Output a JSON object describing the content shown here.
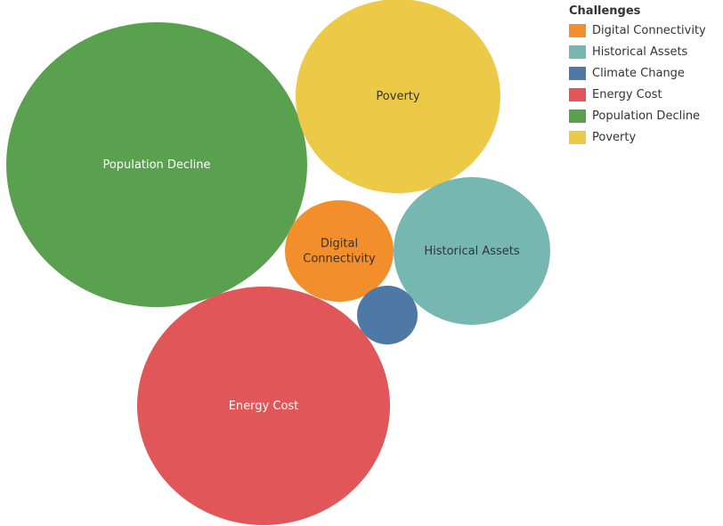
{
  "chart_data": {
    "type": "bubble",
    "legend_title": "Challenges",
    "legend_position": "top-right",
    "legend": [
      {
        "name": "Digital Connectivity",
        "color": "#f28e2b"
      },
      {
        "name": "Historical Assets",
        "color": "#76b7b2"
      },
      {
        "name": "Climate Change",
        "color": "#4e79a7"
      },
      {
        "name": "Energy Cost",
        "color": "#e15759"
      },
      {
        "name": "Population Decline",
        "color": "#59a14f"
      },
      {
        "name": "Poverty",
        "color": "#edc948"
      }
    ],
    "bubbles": [
      {
        "name": "Population Decline",
        "label": "Population Decline",
        "color": "#59a14f",
        "label_color": "#ffffff"
      },
      {
        "name": "Poverty",
        "label": "Poverty",
        "color": "#edc948",
        "label_color": "#333333"
      },
      {
        "name": "Historical Assets",
        "label": "Historical Assets",
        "color": "#76b7b2",
        "label_color": "#333333"
      },
      {
        "name": "Digital Connectivity",
        "label": "Digital\nConnectivity",
        "color": "#f28e2b",
        "label_color": "#333333"
      },
      {
        "name": "Climate Change",
        "label": "",
        "color": "#4e79a7",
        "label_color": "#ffffff"
      },
      {
        "name": "Energy Cost",
        "label": "Energy Cost",
        "color": "#e15759",
        "label_color": "#ffffff"
      }
    ]
  }
}
